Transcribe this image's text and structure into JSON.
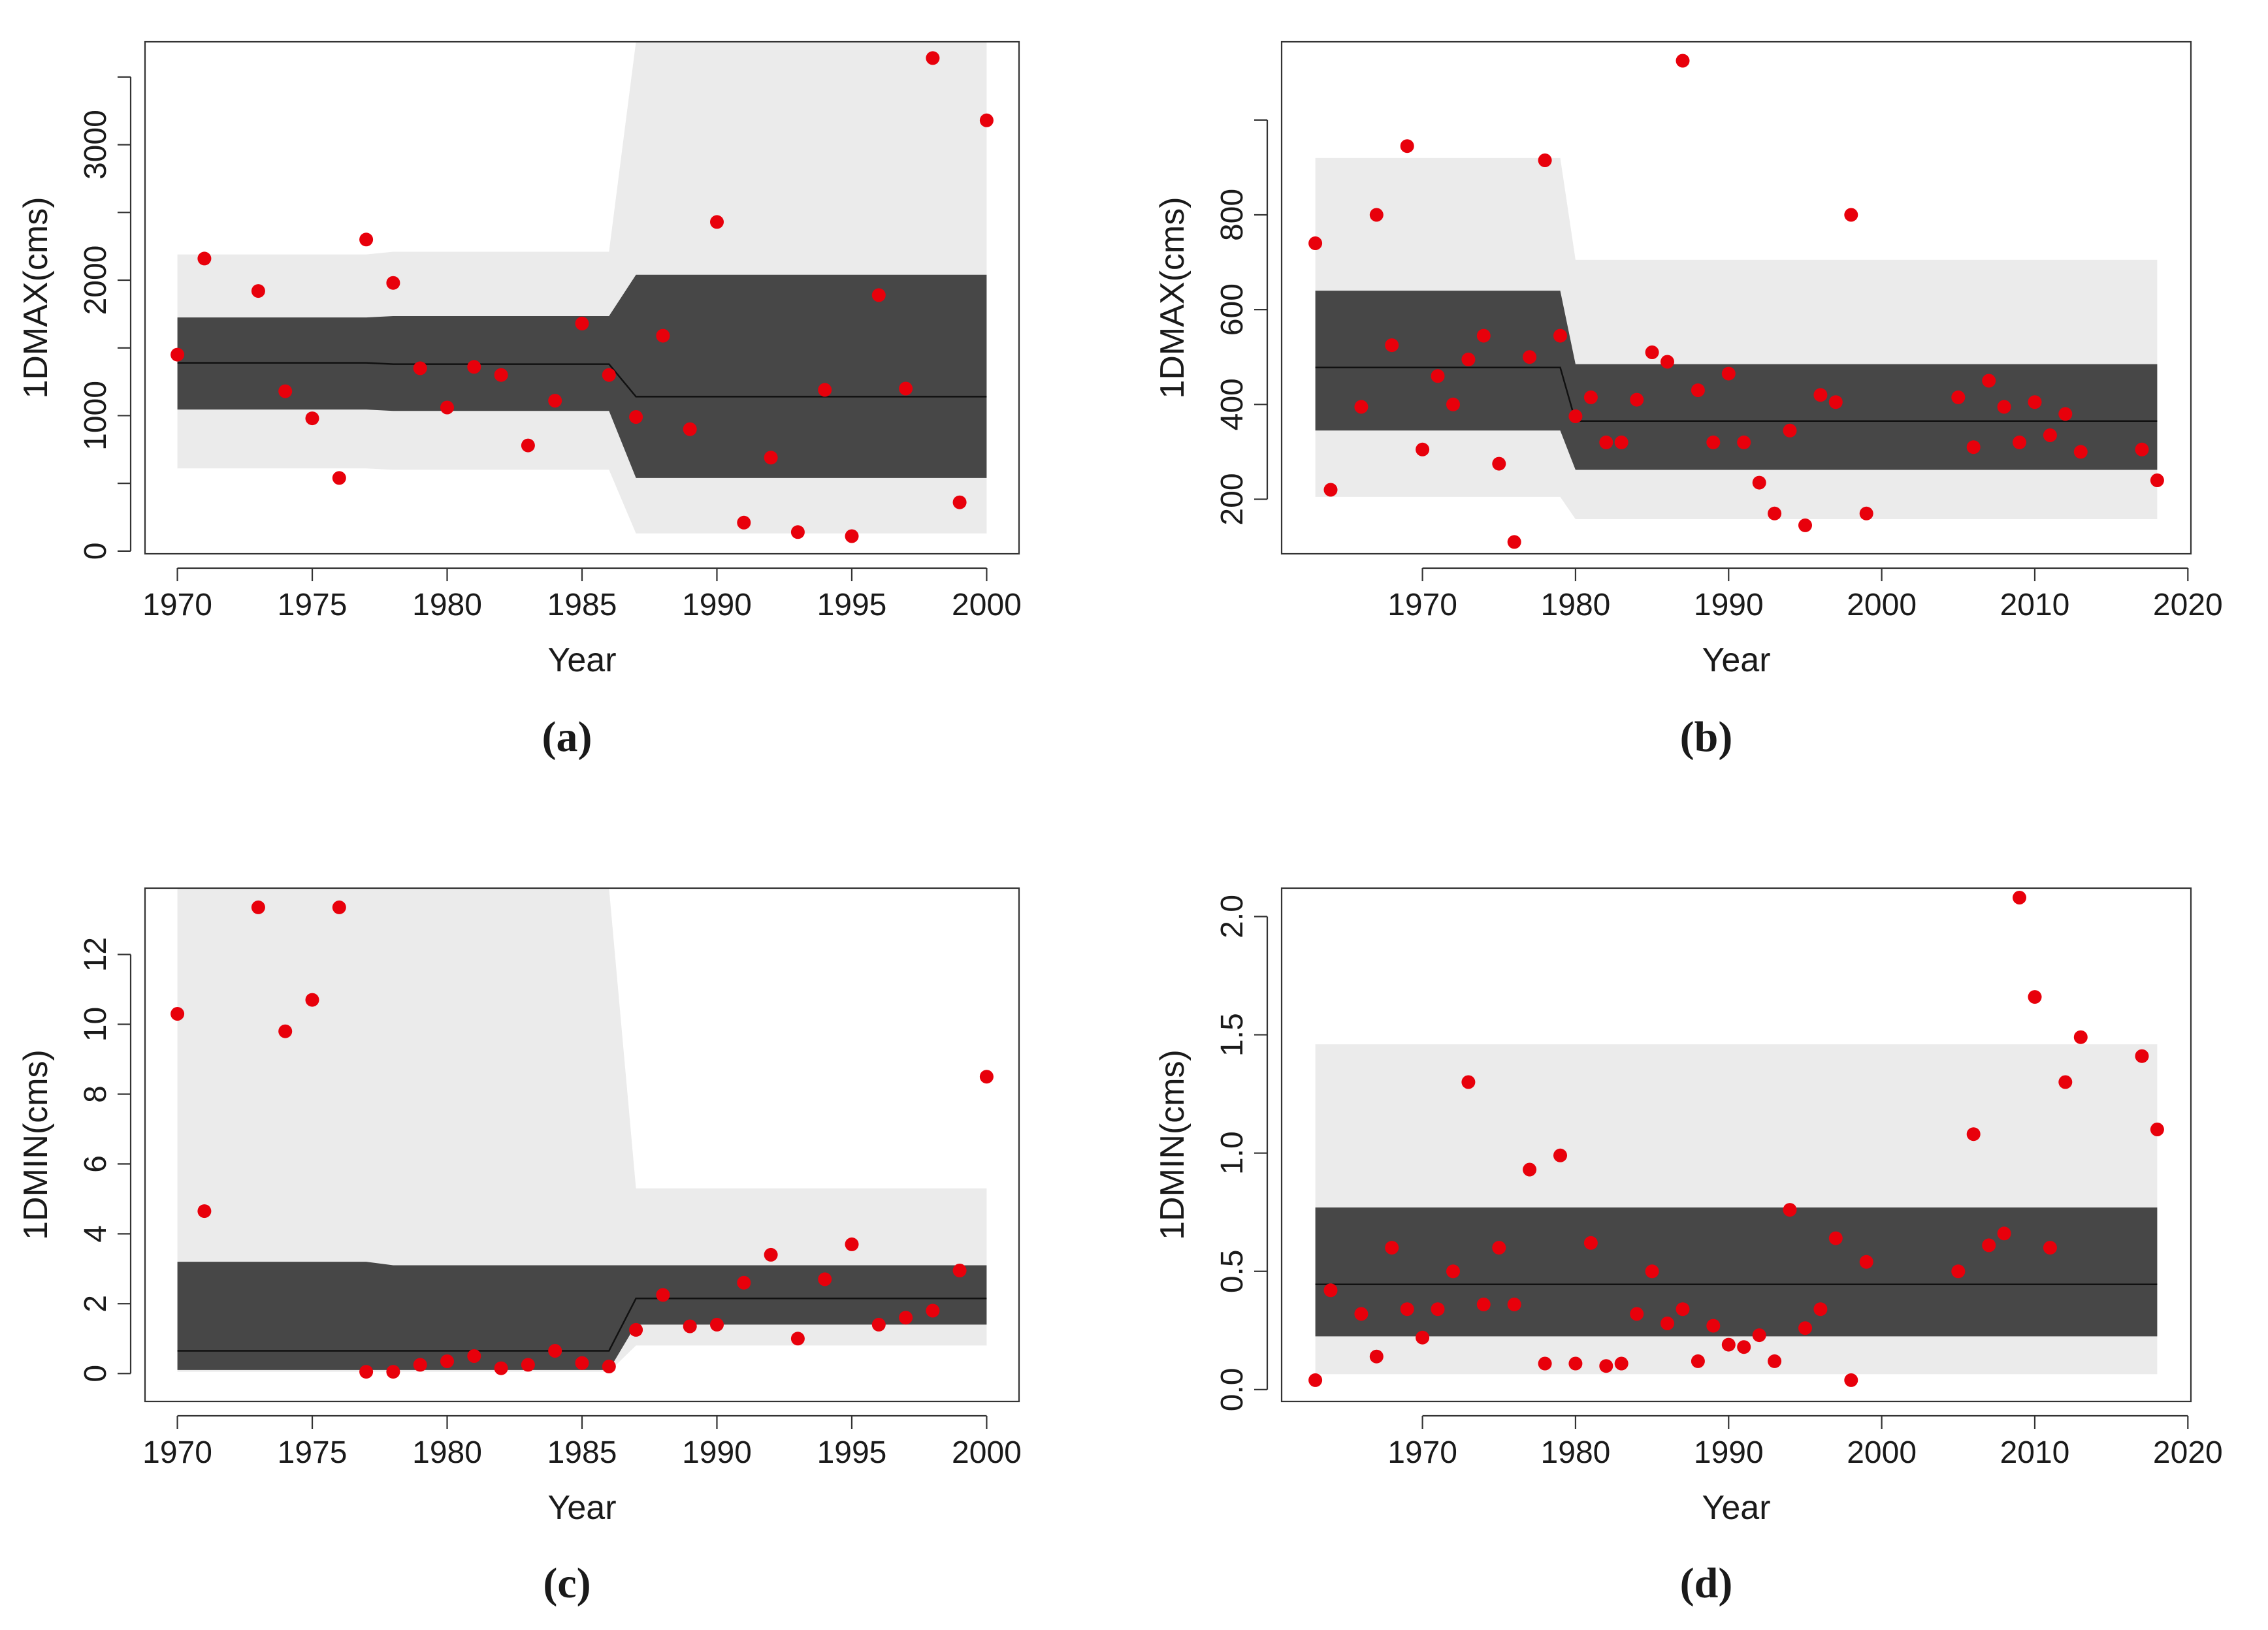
{
  "figure": {
    "captions": [
      "(a)",
      "(b)",
      "(c)",
      "(d)"
    ]
  },
  "colors": {
    "outer_band": "#ebebeb",
    "inner_band": "#474747",
    "median_line": "#111111",
    "points": "#e8000b",
    "axis": "#333333"
  },
  "chart_data": [
    {
      "id": "a",
      "type": "scatter",
      "title": "",
      "xlabel": "Year",
      "ylabel": "1DMAX(cms)",
      "xlim": [
        1968.8,
        2001.2
      ],
      "ylim": [
        -20,
        3760
      ],
      "xticks": [
        1970,
        1975,
        1980,
        1985,
        1990,
        1995,
        2000
      ],
      "xtick_labels": [
        "1970",
        "1975",
        "1980",
        "1985",
        "1990",
        "1995",
        "2000"
      ],
      "yticks": [
        0,
        500,
        1000,
        1500,
        2000,
        2500,
        3000,
        3500
      ],
      "ytick_labels": [
        "0",
        "",
        "1000",
        "",
        "2000",
        "",
        "3000",
        ""
      ],
      "bands": {
        "x": [
          1970,
          1977,
          1978,
          1986,
          1987,
          2000
        ],
        "outer_lower": [
          610,
          610,
          600,
          600,
          130,
          130
        ],
        "outer_upper": [
          2190,
          2190,
          2210,
          2210,
          3760,
          3760
        ],
        "inner_lower": [
          1045,
          1045,
          1035,
          1035,
          540,
          540
        ],
        "inner_upper": [
          1725,
          1725,
          1735,
          1735,
          2040,
          2040
        ],
        "median": [
          1390,
          1390,
          1380,
          1380,
          1140,
          1140
        ]
      },
      "points": {
        "x": [
          1970,
          1971,
          1973,
          1974,
          1975,
          1976,
          1977,
          1978,
          1979,
          1980,
          1981,
          1982,
          1983,
          1984,
          1985,
          1986,
          1987,
          1988,
          1989,
          1990,
          1991,
          1992,
          1993,
          1994,
          1995,
          1996,
          1997,
          1998,
          1999,
          2000
        ],
        "y": [
          1450,
          2160,
          1920,
          1180,
          980,
          540,
          2300,
          1980,
          1350,
          1060,
          1360,
          1300,
          780,
          1110,
          1680,
          1300,
          990,
          1590,
          900,
          2430,
          210,
          690,
          140,
          1190,
          110,
          1890,
          1200,
          3640,
          360,
          3180
        ]
      }
    },
    {
      "id": "b",
      "type": "scatter",
      "title": "",
      "xlabel": "Year",
      "ylabel": "1DMAX(cms)",
      "xlim": [
        1960.8,
        2020.2
      ],
      "ylim": [
        85,
        1165
      ],
      "xticks": [
        1970,
        1980,
        1990,
        2000,
        2010,
        2020
      ],
      "xtick_labels": [
        "1970",
        "1980",
        "1990",
        "2000",
        "2010",
        "2020"
      ],
      "yticks": [
        200,
        400,
        600,
        800,
        1000
      ],
      "ytick_labels": [
        "200",
        "400",
        "600",
        "800",
        ""
      ],
      "bands": {
        "x": [
          1963,
          1979,
          1980,
          2018
        ],
        "outer_lower": [
          205,
          205,
          158,
          158
        ],
        "outer_upper": [
          920,
          920,
          705,
          705
        ],
        "inner_lower": [
          345,
          345,
          262,
          262
        ],
        "inner_upper": [
          640,
          640,
          485,
          485
        ],
        "median": [
          478,
          478,
          365,
          365
        ]
      },
      "points": {
        "x": [
          1963,
          1964,
          1966,
          1967,
          1968,
          1969,
          1970,
          1971,
          1972,
          1973,
          1974,
          1975,
          1976,
          1977,
          1978,
          1979,
          1980,
          1981,
          1982,
          1983,
          1984,
          1985,
          1986,
          1987,
          1988,
          1989,
          1990,
          1991,
          1992,
          1993,
          1994,
          1995,
          1996,
          1997,
          1998,
          1999,
          2005,
          2006,
          2007,
          2008,
          2009,
          2010,
          2011,
          2012,
          2013,
          2017,
          2018
        ],
        "y": [
          740,
          220,
          395,
          800,
          525,
          945,
          305,
          460,
          400,
          495,
          545,
          275,
          110,
          500,
          915,
          545,
          375,
          415,
          320,
          320,
          410,
          510,
          490,
          1125,
          430,
          320,
          465,
          320,
          235,
          170,
          345,
          145,
          420,
          405,
          800,
          170,
          415,
          310,
          450,
          395,
          320,
          405,
          335,
          380,
          300,
          305,
          240
        ]
      }
    },
    {
      "id": "c",
      "type": "scatter",
      "title": "",
      "xlabel": "Year",
      "ylabel": "1DMIN(cms)",
      "xlim": [
        1968.8,
        2001.2
      ],
      "ylim": [
        -0.8,
        13.9
      ],
      "xticks": [
        1970,
        1975,
        1980,
        1985,
        1990,
        1995,
        2000
      ],
      "xtick_labels": [
        "1970",
        "1975",
        "1980",
        "1985",
        "1990",
        "1995",
        "2000"
      ],
      "yticks": [
        0,
        2,
        4,
        6,
        8,
        10,
        12
      ],
      "ytick_labels": [
        "0",
        "2",
        "4",
        "6",
        "8",
        "10",
        "12"
      ],
      "bands": {
        "x": [
          1970,
          1977,
          1978,
          1986,
          1987,
          2000
        ],
        "outer_lower": [
          0.05,
          0.05,
          0.05,
          0.05,
          0.8,
          0.8
        ],
        "outer_upper": [
          13.9,
          13.9,
          13.9,
          13.9,
          5.3,
          5.3
        ],
        "inner_lower": [
          0.1,
          0.1,
          0.1,
          0.1,
          1.4,
          1.4
        ],
        "inner_upper": [
          3.2,
          3.2,
          3.1,
          3.1,
          3.1,
          3.1
        ],
        "median": [
          0.65,
          0.65,
          0.65,
          0.65,
          2.15,
          2.15
        ]
      },
      "points": {
        "x": [
          1970,
          1971,
          1973,
          1974,
          1975,
          1976,
          1977,
          1978,
          1979,
          1980,
          1981,
          1982,
          1983,
          1984,
          1985,
          1986,
          1987,
          1988,
          1989,
          1990,
          1991,
          1992,
          1993,
          1994,
          1995,
          1996,
          1997,
          1998,
          1999,
          2000
        ],
        "y": [
          10.3,
          4.65,
          13.35,
          9.8,
          10.7,
          13.35,
          0.05,
          0.05,
          0.25,
          0.35,
          0.5,
          0.15,
          0.25,
          0.65,
          0.3,
          0.2,
          1.25,
          2.25,
          1.35,
          1.4,
          2.6,
          3.4,
          1.0,
          2.7,
          3.7,
          1.4,
          1.6,
          1.8,
          2.95,
          8.5
        ]
      }
    },
    {
      "id": "d",
      "type": "scatter",
      "title": "",
      "xlabel": "Year",
      "ylabel": "1DMIN(cms)",
      "xlim": [
        1960.8,
        2020.2
      ],
      "ylim": [
        -0.05,
        2.12
      ],
      "xticks": [
        1970,
        1980,
        1990,
        2000,
        2010,
        2020
      ],
      "xtick_labels": [
        "1970",
        "1980",
        "1990",
        "2000",
        "2010",
        "2020"
      ],
      "yticks": [
        0.0,
        0.5,
        1.0,
        1.5,
        2.0
      ],
      "ytick_labels": [
        "0.0",
        "0.5",
        "1.0",
        "1.5",
        "2.0"
      ],
      "bands": {
        "x": [
          1963,
          2018
        ],
        "outer_lower": [
          0.065,
          0.065
        ],
        "outer_upper": [
          1.46,
          1.46
        ],
        "inner_lower": [
          0.225,
          0.225
        ],
        "inner_upper": [
          0.77,
          0.77
        ],
        "median": [
          0.445,
          0.445
        ]
      },
      "points": {
        "x": [
          1963,
          1964,
          1966,
          1967,
          1968,
          1969,
          1970,
          1971,
          1972,
          1973,
          1974,
          1975,
          1976,
          1977,
          1978,
          1979,
          1980,
          1981,
          1982,
          1983,
          1984,
          1985,
          1986,
          1987,
          1988,
          1989,
          1990,
          1991,
          1992,
          1993,
          1994,
          1995,
          1996,
          1997,
          1998,
          1999,
          2005,
          2006,
          2007,
          2008,
          2009,
          2010,
          2011,
          2012,
          2013,
          2017,
          2018
        ],
        "y": [
          0.04,
          0.42,
          0.32,
          0.14,
          0.6,
          0.34,
          0.22,
          0.34,
          0.5,
          1.3,
          0.36,
          0.6,
          0.36,
          0.93,
          0.11,
          0.99,
          0.11,
          0.62,
          0.1,
          0.11,
          0.32,
          0.5,
          0.28,
          0.34,
          0.12,
          0.27,
          0.19,
          0.18,
          0.23,
          0.12,
          0.76,
          0.26,
          0.34,
          0.64,
          0.04,
          0.54,
          0.5,
          1.08,
          0.61,
          0.66,
          2.08,
          1.66,
          0.6,
          1.3,
          1.49,
          1.41,
          1.1
        ]
      }
    }
  ]
}
